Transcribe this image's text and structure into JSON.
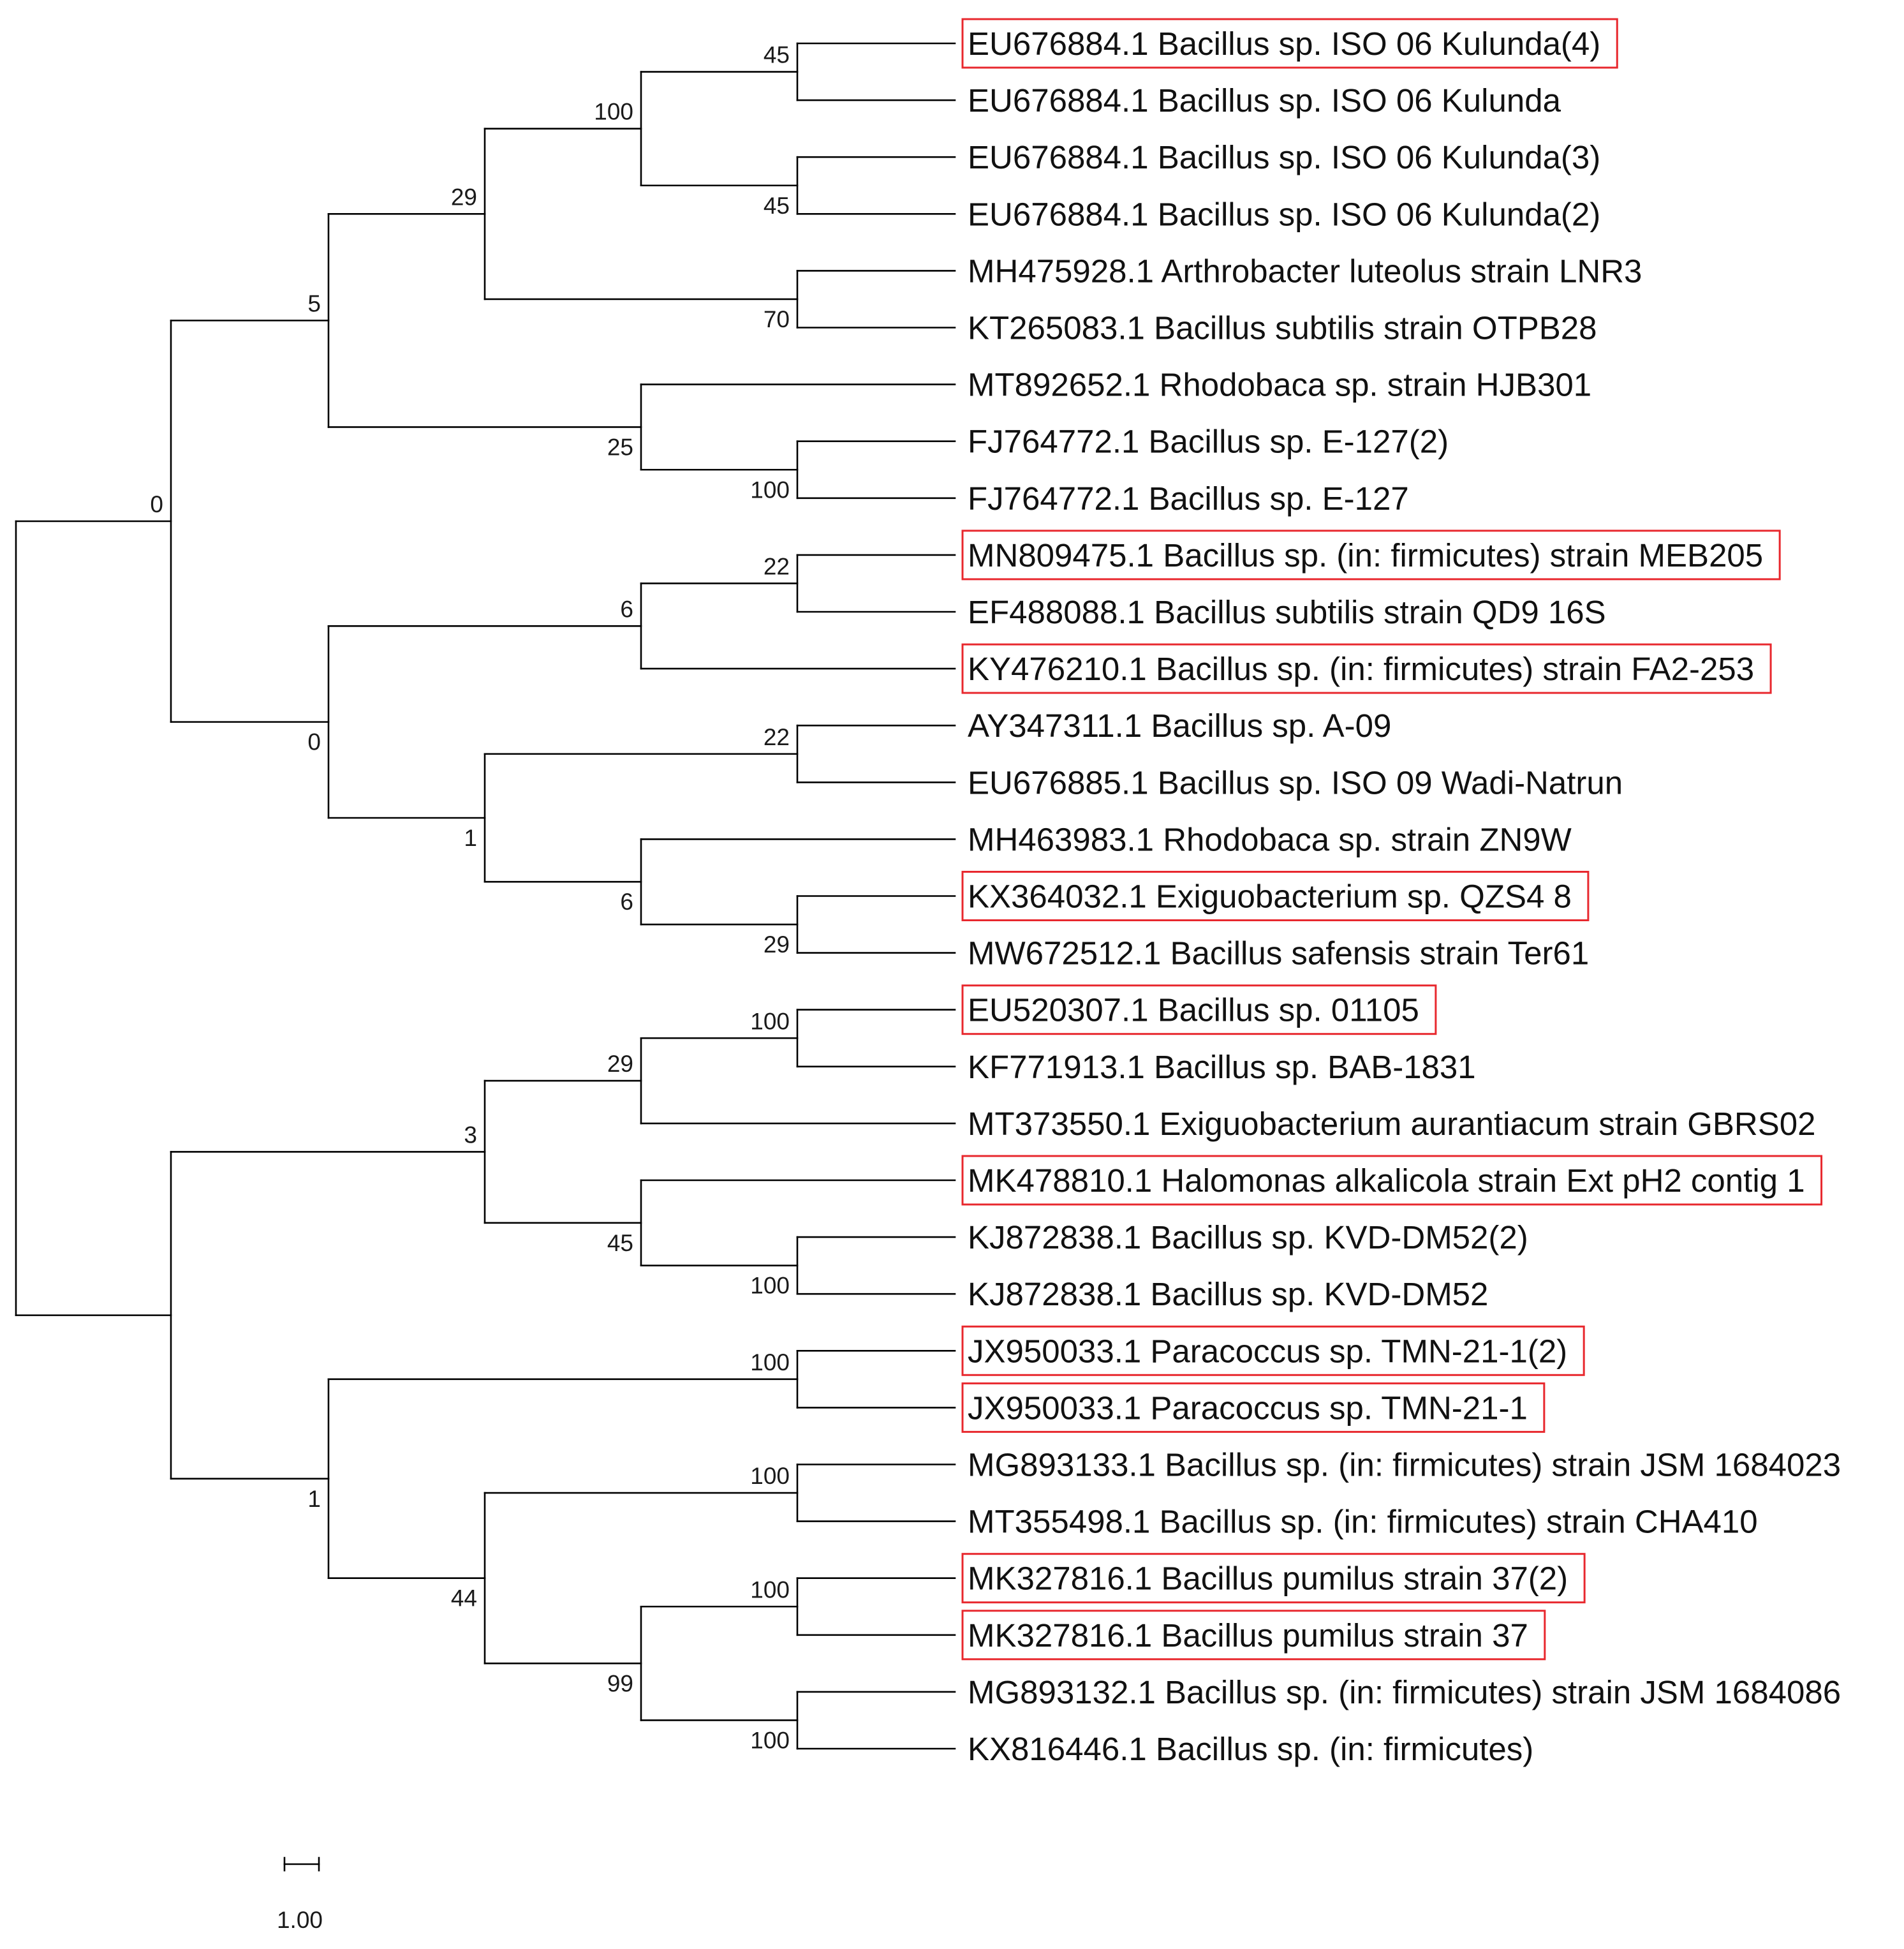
{
  "tree": {
    "type": "phylogenetic-tree",
    "highlight_color": "#e8282e",
    "scale_bar": {
      "length": 1,
      "label": "1.00"
    },
    "nodes": [
      {
        "id": "root",
        "parent": null,
        "depth": 0,
        "support": null
      },
      {
        "id": "A",
        "parent": "root",
        "depth": 1,
        "support": "0"
      },
      {
        "id": "B",
        "parent": "A",
        "depth": 2,
        "support": "5"
      },
      {
        "id": "C",
        "parent": "B",
        "depth": 3,
        "support": "29"
      },
      {
        "id": "D",
        "parent": "C",
        "depth": 4,
        "support": "100"
      },
      {
        "id": "E",
        "parent": "D",
        "depth": 5,
        "support": "45"
      },
      {
        "id": "F",
        "parent": "D",
        "depth": 5,
        "support": "45"
      },
      {
        "id": "G",
        "parent": "C",
        "depth": 5,
        "support": "70"
      },
      {
        "id": "H",
        "parent": "B",
        "depth": 4,
        "support": "25"
      },
      {
        "id": "I",
        "parent": "H",
        "depth": 5,
        "support": "100"
      },
      {
        "id": "J",
        "parent": "A",
        "depth": 2,
        "support": "0"
      },
      {
        "id": "K",
        "parent": "J",
        "depth": 4,
        "support": "6"
      },
      {
        "id": "L",
        "parent": "K",
        "depth": 5,
        "support": "22"
      },
      {
        "id": "M",
        "parent": "J",
        "depth": 3,
        "support": "1"
      },
      {
        "id": "N",
        "parent": "M",
        "depth": 5,
        "support": "22"
      },
      {
        "id": "O",
        "parent": "M",
        "depth": 4,
        "support": "6"
      },
      {
        "id": "P",
        "parent": "O",
        "depth": 5,
        "support": "29"
      },
      {
        "id": "Q",
        "parent": "root",
        "depth": 1,
        "support": null
      },
      {
        "id": "R",
        "parent": "Q",
        "depth": 3,
        "support": "3"
      },
      {
        "id": "S",
        "parent": "R",
        "depth": 4,
        "support": "29"
      },
      {
        "id": "T",
        "parent": "S",
        "depth": 5,
        "support": "100"
      },
      {
        "id": "U",
        "parent": "R",
        "depth": 4,
        "support": "45"
      },
      {
        "id": "V",
        "parent": "U",
        "depth": 5,
        "support": "100"
      },
      {
        "id": "W",
        "parent": "Q",
        "depth": 2,
        "support": "1"
      },
      {
        "id": "X",
        "parent": "W",
        "depth": 5,
        "support": "100"
      },
      {
        "id": "Y",
        "parent": "W",
        "depth": 3,
        "support": "44"
      },
      {
        "id": "Z",
        "parent": "Y",
        "depth": 5,
        "support": "100"
      },
      {
        "id": "AA",
        "parent": "Y",
        "depth": 4,
        "support": "99"
      },
      {
        "id": "AB",
        "parent": "AA",
        "depth": 5,
        "support": "100"
      },
      {
        "id": "AC",
        "parent": "AA",
        "depth": 5,
        "support": "100"
      }
    ],
    "leaves": [
      {
        "parent": "E",
        "label": "EU676884.1 Bacillus sp. ISO 06 Kulunda(4)",
        "highlight": true
      },
      {
        "parent": "E",
        "label": "EU676884.1 Bacillus sp. ISO 06 Kulunda",
        "highlight": false
      },
      {
        "parent": "F",
        "label": "EU676884.1 Bacillus sp. ISO 06 Kulunda(3)",
        "highlight": false
      },
      {
        "parent": "F",
        "label": "EU676884.1 Bacillus sp. ISO 06 Kulunda(2)",
        "highlight": false
      },
      {
        "parent": "G",
        "label": "MH475928.1 Arthrobacter luteolus strain LNR3",
        "highlight": false
      },
      {
        "parent": "G",
        "label": "KT265083.1 Bacillus subtilis strain OTPB28",
        "highlight": false
      },
      {
        "parent": "H",
        "label": "MT892652.1 Rhodobaca sp. strain HJB301",
        "highlight": false
      },
      {
        "parent": "I",
        "label": "FJ764772.1 Bacillus sp. E-127(2)",
        "highlight": false
      },
      {
        "parent": "I",
        "label": "FJ764772.1 Bacillus sp. E-127",
        "highlight": false
      },
      {
        "parent": "L",
        "label": "MN809475.1 Bacillus sp. (in: firmicutes) strain MEB205",
        "highlight": true
      },
      {
        "parent": "L",
        "label": "EF488088.1 Bacillus subtilis strain QD9 16S",
        "highlight": false
      },
      {
        "parent": "K",
        "label": "KY476210.1 Bacillus sp. (in: firmicutes) strain FA2-253",
        "highlight": true
      },
      {
        "parent": "N",
        "label": "AY347311.1 Bacillus sp. A-09",
        "highlight": false
      },
      {
        "parent": "N",
        "label": "EU676885.1 Bacillus sp. ISO 09 Wadi-Natrun",
        "highlight": false
      },
      {
        "parent": "O",
        "label": "MH463983.1 Rhodobaca sp. strain ZN9W",
        "highlight": false
      },
      {
        "parent": "P",
        "label": "KX364032.1 Exiguobacterium sp. QZS4 8",
        "highlight": true
      },
      {
        "parent": "P",
        "label": "MW672512.1 Bacillus safensis strain Ter61",
        "highlight": false
      },
      {
        "parent": "T",
        "label": "EU520307.1 Bacillus sp. 01105",
        "highlight": true
      },
      {
        "parent": "T",
        "label": "KF771913.1 Bacillus sp. BAB-1831",
        "highlight": false
      },
      {
        "parent": "S",
        "label": "MT373550.1 Exiguobacterium aurantiacum strain GBRS02",
        "highlight": false
      },
      {
        "parent": "U",
        "label": "MK478810.1 Halomonas alkalicola strain Ext pH2 contig 1",
        "highlight": true
      },
      {
        "parent": "V",
        "label": "KJ872838.1 Bacillus sp. KVD-DM52(2)",
        "highlight": false
      },
      {
        "parent": "V",
        "label": "KJ872838.1 Bacillus sp. KVD-DM52",
        "highlight": false
      },
      {
        "parent": "X",
        "label": "JX950033.1 Paracoccus sp. TMN-21-1(2)",
        "highlight": true
      },
      {
        "parent": "X",
        "label": "JX950033.1 Paracoccus sp. TMN-21-1",
        "highlight": true
      },
      {
        "parent": "Z",
        "label": "MG893133.1 Bacillus sp. (in: firmicutes) strain JSM 1684023",
        "highlight": false
      },
      {
        "parent": "Z",
        "label": "MT355498.1 Bacillus sp. (in: firmicutes) strain CHA410",
        "highlight": false
      },
      {
        "parent": "AB",
        "label": "MK327816.1 Bacillus pumilus strain 37(2)",
        "highlight": true
      },
      {
        "parent": "AB",
        "label": "MK327816.1 Bacillus pumilus strain 37",
        "highlight": true
      },
      {
        "parent": "AC",
        "label": "MG893132.1 Bacillus sp. (in: firmicutes) strain JSM 1684086",
        "highlight": false
      },
      {
        "parent": "AC",
        "label": "KX816446.1 Bacillus sp. (in: firmicutes)",
        "highlight": false
      }
    ]
  }
}
